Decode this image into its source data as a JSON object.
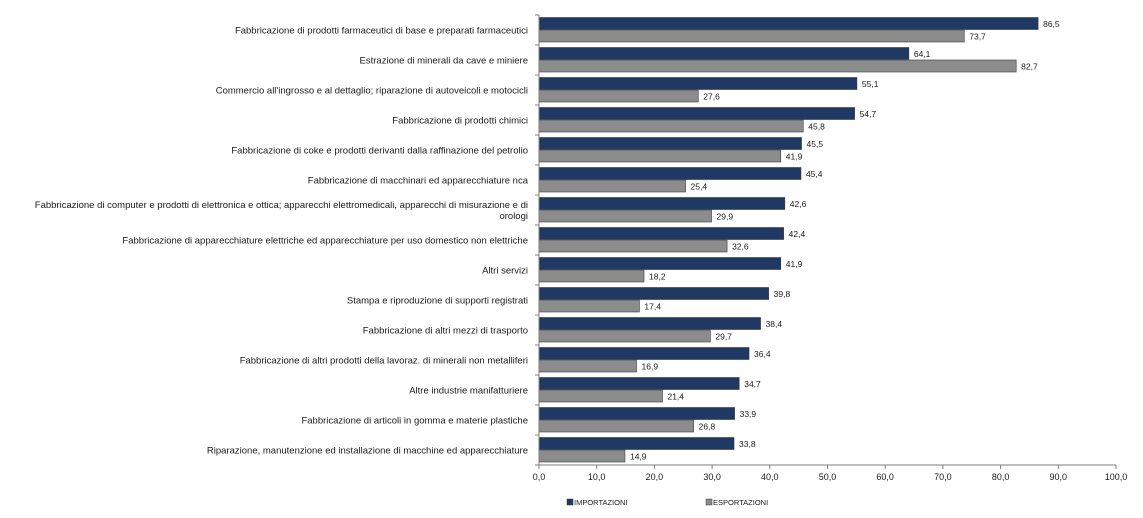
{
  "chart_data": {
    "type": "bar",
    "orientation": "horizontal",
    "categories": [
      [
        "Fabbricazione di prodotti farmaceutici di base e preparati farmaceutici"
      ],
      [
        "Estrazione di minerali da cave e miniere"
      ],
      [
        "Commercio all'ingrosso e al dettaglio; riparazione di autoveicoli e motocicli"
      ],
      [
        "Fabbricazione di prodotti chimici"
      ],
      [
        "Fabbricazione di coke e prodotti derivanti dalla raffinazione del petrolio"
      ],
      [
        "Fabbricazione di macchinari ed apparecchiature nca"
      ],
      [
        "Fabbricazione di computer e prodotti di elettronica e ottica; apparecchi elettromedicali, apparecchi di misurazione e di",
        "orologi"
      ],
      [
        "Fabbricazione di apparecchiature elettriche ed apparecchiature per uso domestico non elettriche"
      ],
      [
        "Altri servizi"
      ],
      [
        "Stampa e riproduzione di supporti registrati"
      ],
      [
        "Fabbricazione di altri mezzi di trasporto"
      ],
      [
        "Fabbricazione di altri prodotti della lavoraz. di minerali non metalliferi"
      ],
      [
        "Altre industrie manifatturiere"
      ],
      [
        "Fabbricazione di articoli in gomma e materie plastiche"
      ],
      [
        "Riparazione, manutenzione ed installazione di macchine ed apparecchiature"
      ]
    ],
    "series": [
      {
        "name": "IMPORTAZIONI",
        "color": "#1f3864",
        "values": [
          86.5,
          64.1,
          55.1,
          54.7,
          45.5,
          45.4,
          42.6,
          42.4,
          41.9,
          39.8,
          38.4,
          36.4,
          34.7,
          33.9,
          33.8
        ],
        "labels": [
          "86,5",
          "64,1",
          "55,1",
          "54,7",
          "45,5",
          "45,4",
          "42,6",
          "42,4",
          "41,9",
          "39,8",
          "38,4",
          "36,4",
          "34,7",
          "33,9",
          "33,8"
        ]
      },
      {
        "name": "ESPORTAZIONI",
        "color": "#8c8c8c",
        "values": [
          73.7,
          82.7,
          27.6,
          45.8,
          41.9,
          25.4,
          29.9,
          32.6,
          18.2,
          17.4,
          29.7,
          16.9,
          21.4,
          26.8,
          14.9
        ],
        "labels": [
          "73,7",
          "82,7",
          "27,6",
          "45,8",
          "41,9",
          "25,4",
          "29,9",
          "32,6",
          "18,2",
          "17,4",
          "29,7",
          "16,9",
          "21,4",
          "26,8",
          "14,9"
        ]
      }
    ],
    "xlim": [
      0,
      100
    ],
    "xticks": [
      0,
      10,
      20,
      30,
      40,
      50,
      60,
      70,
      80,
      90,
      100
    ],
    "xtick_labels": [
      "0,0",
      "10,0",
      "20,0",
      "30,0",
      "40,0",
      "50,0",
      "60,0",
      "70,0",
      "80,0",
      "90,0",
      "100,0"
    ],
    "grid": false,
    "legend": "bottom"
  }
}
